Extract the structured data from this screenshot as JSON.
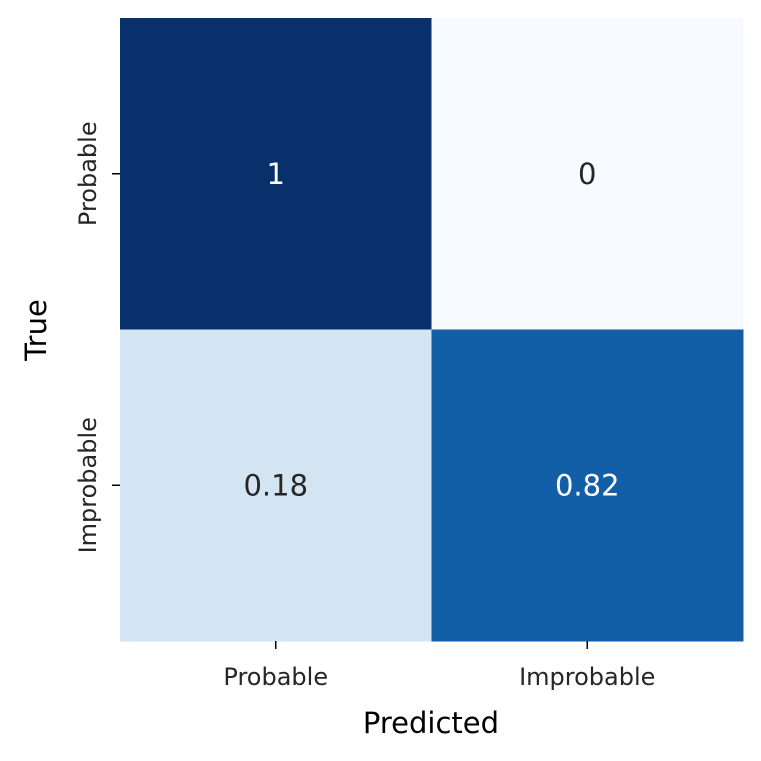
{
  "chart_data": {
    "type": "heatmap",
    "x_categories": [
      "Probable",
      "Improbable"
    ],
    "y_categories": [
      "Probable",
      "Improbable"
    ],
    "values": [
      [
        1,
        0
      ],
      [
        0.18,
        0.82
      ]
    ],
    "annotations": [
      [
        "1",
        "0"
      ],
      [
        "0.18",
        "0.82"
      ]
    ],
    "xlabel": "Predicted",
    "ylabel": "True",
    "colormap": "Blues",
    "vmin": 0,
    "vmax": 1,
    "colorbar": false,
    "grid": false
  },
  "colors": {
    "low": "#f7fbff",
    "high": "#08306b",
    "text_on_dark": "#ffffff",
    "text_on_light": "#262626"
  }
}
